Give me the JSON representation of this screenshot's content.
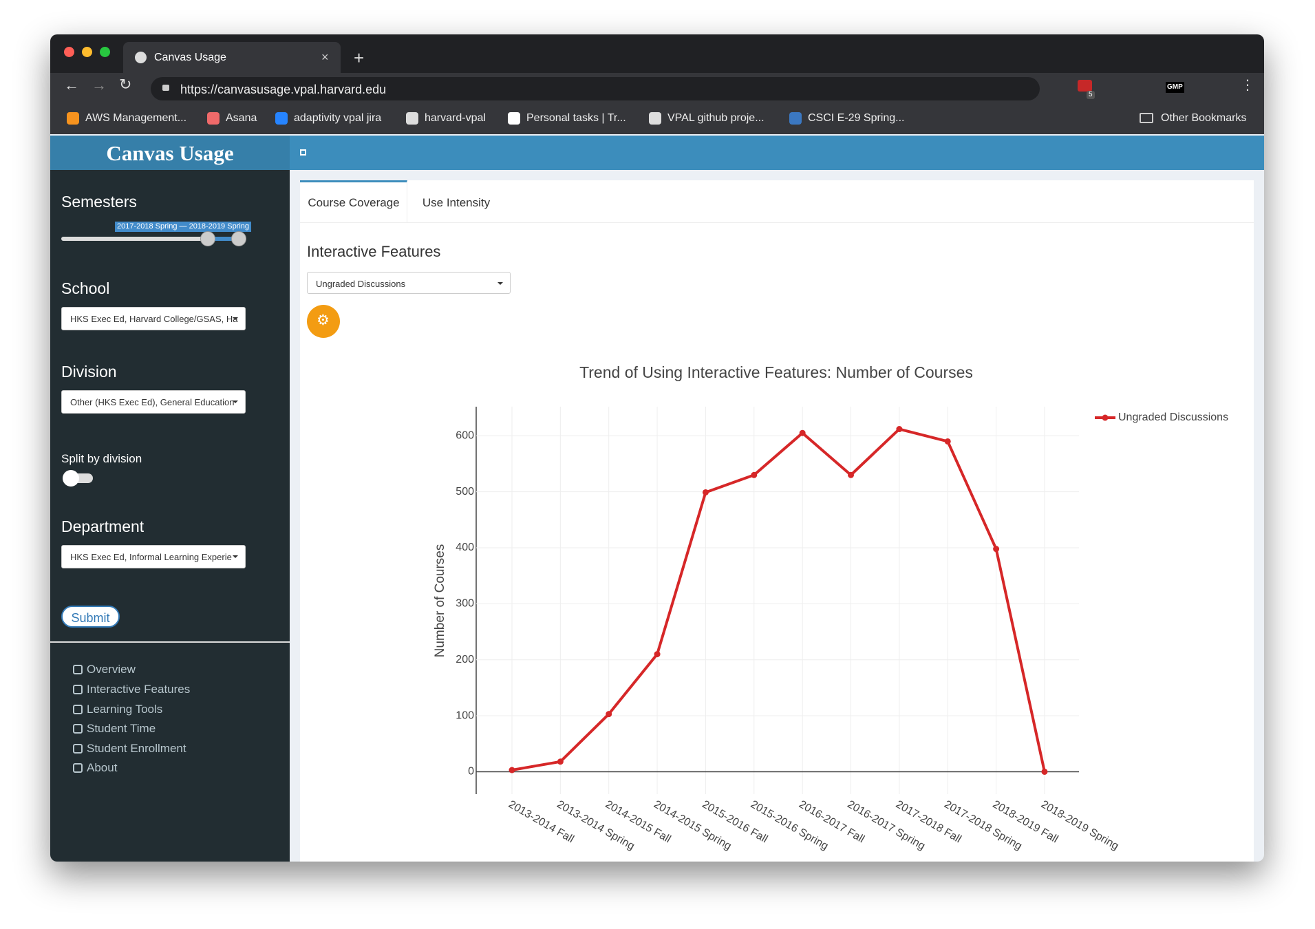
{
  "browser": {
    "tab_title": "Canvas Usage",
    "url": "https://canvasusage.vpal.harvard.edu",
    "bookmarks": [
      "AWS Management...",
      "Asana",
      "adaptivity vpal jira",
      "harvard-vpal",
      "Personal tasks | Tr...",
      "VPAL github proje...",
      "CSCI E-29 Spring..."
    ],
    "other_bookmarks": "Other Bookmarks",
    "extension_badge": "5",
    "extension_label": "GMP"
  },
  "app": {
    "title": "Canvas Usage",
    "sidebar": {
      "semesters_label": "Semesters",
      "semesters_range": "2017-2018 Spring — 2018-2019 Spring",
      "school_label": "School",
      "school_value": "HKS Exec Ed, Harvard College/GSAS, Ha",
      "division_label": "Division",
      "division_value": "Other (HKS Exec Ed), General Education",
      "split_label": "Split by division",
      "department_label": "Department",
      "department_value": "HKS Exec Ed, Informal Learning Experie",
      "submit": "Submit",
      "nav": [
        "Overview",
        "Interactive Features",
        "Learning Tools",
        "Student Time",
        "Student Enrollment",
        "About"
      ]
    },
    "tabs": [
      "Course Coverage",
      "Use Intensity"
    ],
    "section_title": "Interactive Features",
    "feature_select": "Ungraded Discussions"
  },
  "chart_data": {
    "type": "line",
    "title": "Trend of Using Interactive Features: Number of Courses",
    "y_label": "Number of Courses",
    "categories": [
      "2013-2014 Fall",
      "2013-2014 Spring",
      "2014-2015 Fall",
      "2014-2015 Spring",
      "2015-2016 Fall",
      "2015-2016 Spring",
      "2016-2017 Fall",
      "2016-2017 Spring",
      "2017-2018 Fall",
      "2017-2018 Spring",
      "2018-2019 Fall",
      "2018-2019 Spring"
    ],
    "series": [
      {
        "name": "Ungraded Discussions",
        "color": "#d62728",
        "values": [
          3,
          18,
          103,
          210,
          499,
          530,
          605,
          530,
          612,
          590,
          398,
          0
        ]
      }
    ],
    "ylim": [
      -40,
      652
    ],
    "yticks": [
      0,
      100,
      200,
      300,
      400,
      500,
      600
    ],
    "grid": true
  }
}
